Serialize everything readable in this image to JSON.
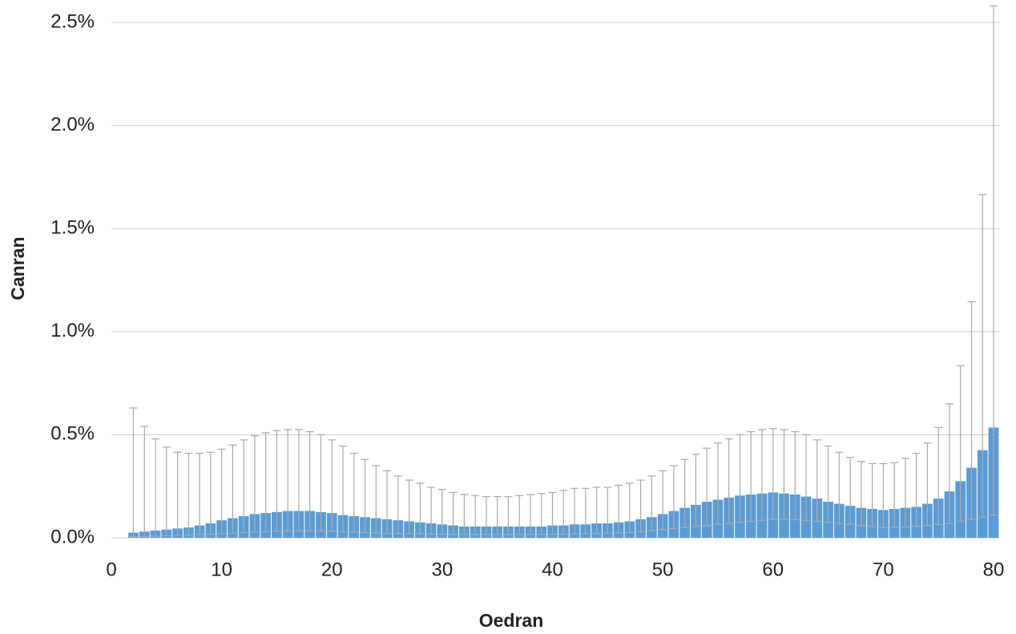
{
  "chart_data": {
    "type": "bar",
    "x_label": "Oedran",
    "y_label": "Canran",
    "x": [
      2,
      3,
      4,
      5,
      6,
      7,
      8,
      9,
      10,
      11,
      12,
      13,
      14,
      15,
      16,
      17,
      18,
      19,
      20,
      21,
      22,
      23,
      24,
      25,
      26,
      27,
      28,
      29,
      30,
      31,
      32,
      33,
      34,
      35,
      36,
      37,
      38,
      39,
      40,
      41,
      42,
      43,
      44,
      45,
      46,
      47,
      48,
      49,
      50,
      51,
      52,
      53,
      54,
      55,
      56,
      57,
      58,
      59,
      60,
      61,
      62,
      63,
      64,
      65,
      66,
      67,
      68,
      69,
      70,
      71,
      72,
      73,
      74,
      75,
      76,
      77,
      78,
      79,
      80
    ],
    "values": [
      0.025,
      0.03,
      0.035,
      0.04,
      0.045,
      0.05,
      0.06,
      0.07,
      0.085,
      0.095,
      0.105,
      0.115,
      0.12,
      0.125,
      0.13,
      0.13,
      0.13,
      0.125,
      0.12,
      0.11,
      0.105,
      0.1,
      0.095,
      0.09,
      0.085,
      0.08,
      0.075,
      0.07,
      0.065,
      0.06,
      0.055,
      0.055,
      0.055,
      0.055,
      0.055,
      0.055,
      0.055,
      0.055,
      0.06,
      0.06,
      0.065,
      0.065,
      0.07,
      0.07,
      0.075,
      0.08,
      0.09,
      0.1,
      0.115,
      0.13,
      0.145,
      0.16,
      0.175,
      0.185,
      0.195,
      0.205,
      0.21,
      0.215,
      0.22,
      0.215,
      0.21,
      0.2,
      0.19,
      0.175,
      0.165,
      0.155,
      0.145,
      0.14,
      0.135,
      0.14,
      0.145,
      0.15,
      0.165,
      0.19,
      0.225,
      0.275,
      0.34,
      0.425,
      0.535
    ],
    "error_upper": [
      0.63,
      0.54,
      0.48,
      0.44,
      0.415,
      0.41,
      0.41,
      0.415,
      0.43,
      0.45,
      0.475,
      0.495,
      0.51,
      0.52,
      0.525,
      0.525,
      0.515,
      0.5,
      0.475,
      0.445,
      0.41,
      0.38,
      0.35,
      0.325,
      0.3,
      0.28,
      0.265,
      0.245,
      0.235,
      0.22,
      0.21,
      0.205,
      0.2,
      0.2,
      0.2,
      0.205,
      0.21,
      0.215,
      0.22,
      0.23,
      0.24,
      0.24,
      0.245,
      0.245,
      0.255,
      0.265,
      0.28,
      0.3,
      0.325,
      0.35,
      0.38,
      0.405,
      0.435,
      0.46,
      0.48,
      0.5,
      0.515,
      0.525,
      0.53,
      0.525,
      0.515,
      0.5,
      0.475,
      0.445,
      0.415,
      0.39,
      0.37,
      0.36,
      0.36,
      0.365,
      0.385,
      0.41,
      0.46,
      0.535,
      0.65,
      0.835,
      1.145,
      1.665,
      2.58
    ],
    "error_lower": [
      0.005,
      0.006,
      0.008,
      0.01,
      0.012,
      0.014,
      0.016,
      0.018,
      0.02,
      0.022,
      0.025,
      0.028,
      0.03,
      0.032,
      0.033,
      0.034,
      0.034,
      0.033,
      0.032,
      0.03,
      0.028,
      0.026,
      0.024,
      0.022,
      0.021,
      0.02,
      0.019,
      0.018,
      0.017,
      0.016,
      0.016,
      0.016,
      0.016,
      0.016,
      0.016,
      0.016,
      0.016,
      0.016,
      0.017,
      0.018,
      0.019,
      0.02,
      0.021,
      0.022,
      0.024,
      0.026,
      0.03,
      0.035,
      0.04,
      0.045,
      0.05,
      0.055,
      0.06,
      0.065,
      0.07,
      0.075,
      0.08,
      0.085,
      0.09,
      0.09,
      0.088,
      0.085,
      0.08,
      0.075,
      0.07,
      0.065,
      0.06,
      0.055,
      0.05,
      0.05,
      0.052,
      0.055,
      0.06,
      0.065,
      0.07,
      0.08,
      0.09,
      0.1,
      0.11
    ],
    "color": "#5b9bd5",
    "error_color": "#aaaaaa",
    "xlim": [
      0,
      80
    ],
    "xticks": [
      0,
      10,
      20,
      30,
      40,
      50,
      60,
      70,
      80
    ],
    "ylim": [
      0,
      2.5
    ],
    "yticks": [
      {
        "value": 0,
        "label": "0.0%"
      },
      {
        "value": 0.5,
        "label": "0.5%"
      },
      {
        "value": 1,
        "label": "1.0%"
      },
      {
        "value": 1.5,
        "label": "1.5%"
      },
      {
        "value": 2,
        "label": "2.0%"
      },
      {
        "value": 2.5,
        "label": "2.5%"
      }
    ],
    "grid": true
  }
}
